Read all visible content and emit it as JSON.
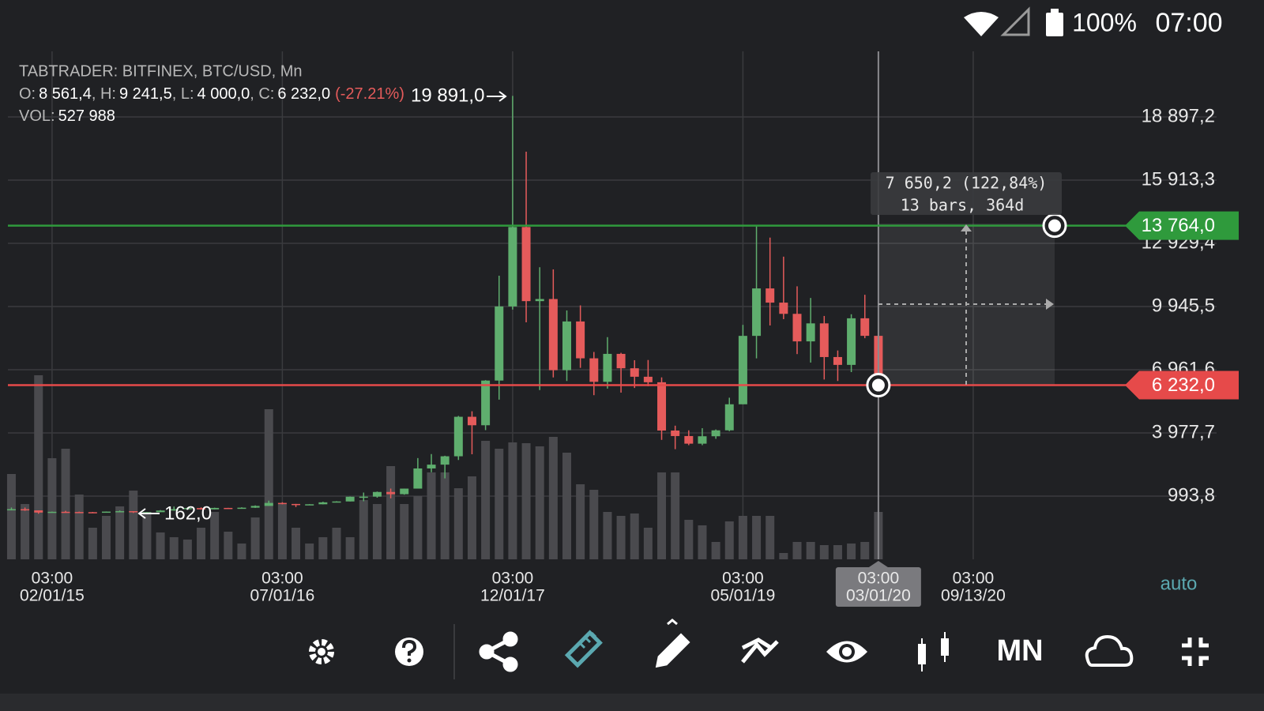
{
  "status_bar": {
    "battery": "100%",
    "time": "07:00"
  },
  "header": {
    "title": "TABTRADER: BITFINEX, BTC/USD, Mn",
    "ohlc_line": [
      {
        "label": "O:",
        "value": "8 561,4"
      },
      {
        "label": ", H:",
        "value": "9 241,5"
      },
      {
        "label": ", L:",
        "value": "4 000,0"
      },
      {
        "label": ", C:",
        "value": "6 232,0"
      }
    ],
    "change": "(-27.21%)",
    "volume_label": "VOL:",
    "volume_value": "527 988"
  },
  "chart_data": {
    "type": "candlestick",
    "up_color": "#5fae6e",
    "down_color": "#e55b5b",
    "volume_color": "#4a4a4e",
    "xlim": [
      -0.26,
      90.6
    ],
    "ylim": [
      -1990.1,
      21993.0
    ],
    "volume_ylim": [
      0,
      5658400
    ],
    "grid": true,
    "yticks": [
      {
        "value": 993.8,
        "label": "993,8"
      },
      {
        "value": 3977.7,
        "label": "3 977,7"
      },
      {
        "value": 6961.6,
        "label": "6 961,6"
      },
      {
        "value": 9945.5,
        "label": "9 945,5"
      },
      {
        "value": 12929.4,
        "label": "12 929,4"
      },
      {
        "value": 15913.3,
        "label": "15 913,3"
      },
      {
        "value": 18897.2,
        "label": "18 897,2"
      }
    ],
    "xticks": [
      {
        "value": 3,
        "time": "03:00",
        "label": "02/01/15"
      },
      {
        "value": 20,
        "time": "03:00",
        "label": "07/01/16"
      },
      {
        "value": 37,
        "time": "03:00",
        "label": "12/01/17"
      },
      {
        "value": 54,
        "time": "03:00",
        "label": "05/01/19"
      },
      {
        "value": 64,
        "time": "03:00",
        "label": "03/01/20"
      },
      {
        "value": 71,
        "time": "03:00",
        "label": "09/13/20"
      }
    ],
    "ohlc": [
      [
        338,
        457,
        320,
        378
      ],
      [
        378,
        455,
        300,
        320
      ],
      [
        320,
        320,
        162,
        218
      ],
      [
        218,
        265,
        212,
        254
      ],
      [
        254,
        300,
        240,
        244
      ],
      [
        244,
        261,
        213,
        236
      ],
      [
        236,
        247,
        226,
        230
      ],
      [
        230,
        268,
        218,
        263
      ],
      [
        263,
        317,
        253,
        284
      ],
      [
        284,
        285,
        199,
        230
      ],
      [
        230,
        245,
        225,
        236
      ],
      [
        236,
        334,
        235,
        314
      ],
      [
        314,
        502,
        300,
        377
      ],
      [
        377,
        465,
        345,
        430
      ],
      [
        430,
        462,
        352,
        368
      ],
      [
        368,
        448,
        365,
        437
      ],
      [
        437,
        440,
        396,
        416
      ],
      [
        416,
        467,
        413,
        448
      ],
      [
        448,
        555,
        436,
        531
      ],
      [
        531,
        780,
        530,
        673
      ],
      [
        673,
        704,
        605,
        624
      ],
      [
        624,
        627,
        480,
        575
      ],
      [
        575,
        614,
        575,
        609
      ],
      [
        609,
        729,
        604,
        701
      ],
      [
        701,
        754,
        697,
        742
      ],
      [
        742,
        975,
        742,
        966
      ],
      [
        966,
        1162,
        752,
        970
      ],
      [
        970,
        1210,
        920,
        1190
      ],
      [
        1190,
        1350,
        890,
        1085
      ],
      [
        1085,
        1350,
        1060,
        1348
      ],
      [
        1348,
        2790,
        1348,
        2300
      ],
      [
        2300,
        2980,
        2120,
        2480
      ],
      [
        2480,
        2900,
        1830,
        2875
      ],
      [
        2875,
        4780,
        2700,
        4740
      ],
      [
        4740,
        5000,
        2970,
        4340
      ],
      [
        4340,
        6470,
        4110,
        6450
      ],
      [
        6450,
        11400,
        5550,
        9950
      ],
      [
        9950,
        19891,
        9800,
        13700
      ],
      [
        13700,
        17256,
        9200,
        10200
      ],
      [
        10200,
        11800,
        6000,
        10300
      ],
      [
        10300,
        11700,
        6600,
        6940
      ],
      [
        6940,
        9760,
        6430,
        9240
      ],
      [
        9240,
        10000,
        7050,
        7500
      ],
      [
        7500,
        7800,
        5760,
        6390
      ],
      [
        6390,
        8500,
        6070,
        7710
      ],
      [
        7710,
        7760,
        5880,
        7030
      ],
      [
        7030,
        7410,
        6100,
        6630
      ],
      [
        6630,
        7420,
        6180,
        6370
      ],
      [
        6370,
        6600,
        3650,
        4090
      ],
      [
        4090,
        4320,
        3210,
        3830
      ],
      [
        3830,
        4100,
        3400,
        3470
      ],
      [
        3470,
        4200,
        3400,
        3820
      ],
      [
        3820,
        4140,
        3700,
        4100
      ],
      [
        4100,
        5640,
        4060,
        5330
      ],
      [
        5330,
        9080,
        5330,
        8560
      ],
      [
        8560,
        13764,
        7500,
        10800
      ],
      [
        10800,
        13200,
        9050,
        10130
      ],
      [
        10130,
        12300,
        9350,
        9600
      ],
      [
        9600,
        10900,
        7700,
        8300
      ],
      [
        8300,
        10350,
        7300,
        9150
      ],
      [
        9150,
        9500,
        6500,
        7560
      ],
      [
        7560,
        7870,
        6430,
        7190
      ],
      [
        7190,
        9580,
        6850,
        9390
      ],
      [
        9390,
        10500,
        8450,
        8561.4
      ],
      [
        8561.4,
        9241.5,
        4000.0,
        6232.0
      ]
    ],
    "volume": [
      950400,
      616000,
      2050400,
      1126400,
      1232000,
      721600,
      352000,
      484000,
      589600,
      765600,
      528000,
      299200,
      246400,
      220000,
      352000,
      528000,
      308000,
      176000,
      466400,
      1672000,
      616000,
      352000,
      176000,
      246400,
      352000,
      246400,
      660000,
      616000,
      1038400,
      616000,
      704000,
      968000,
      968000,
      792000,
      924000,
      1320000,
      1232000,
      1302400,
      1293600,
      1258400,
      1364000,
      1188000,
      836000,
      774400,
      528000,
      484000,
      510400,
      352000,
      968000,
      968000,
      440000,
      378400,
      193600,
      422400,
      484000,
      484000,
      484000,
      70400,
      193600,
      193600,
      158400,
      158400,
      176000,
      193600,
      527988
    ],
    "price_lines": [
      {
        "value": 13764.0,
        "label": "13 764,0",
        "color": "#2f9a3c"
      },
      {
        "value": 6232.0,
        "label": "6 232,0",
        "color": "#e64a4a"
      }
    ],
    "annotations": {
      "max_label": "19 891,0",
      "min_label": "162,0",
      "ruler_change": "7 650,2 (122,84%)",
      "ruler_span": "13 bars, 364d"
    },
    "scale_mode": "auto"
  },
  "toolbar": {
    "timeframe": "MN"
  }
}
